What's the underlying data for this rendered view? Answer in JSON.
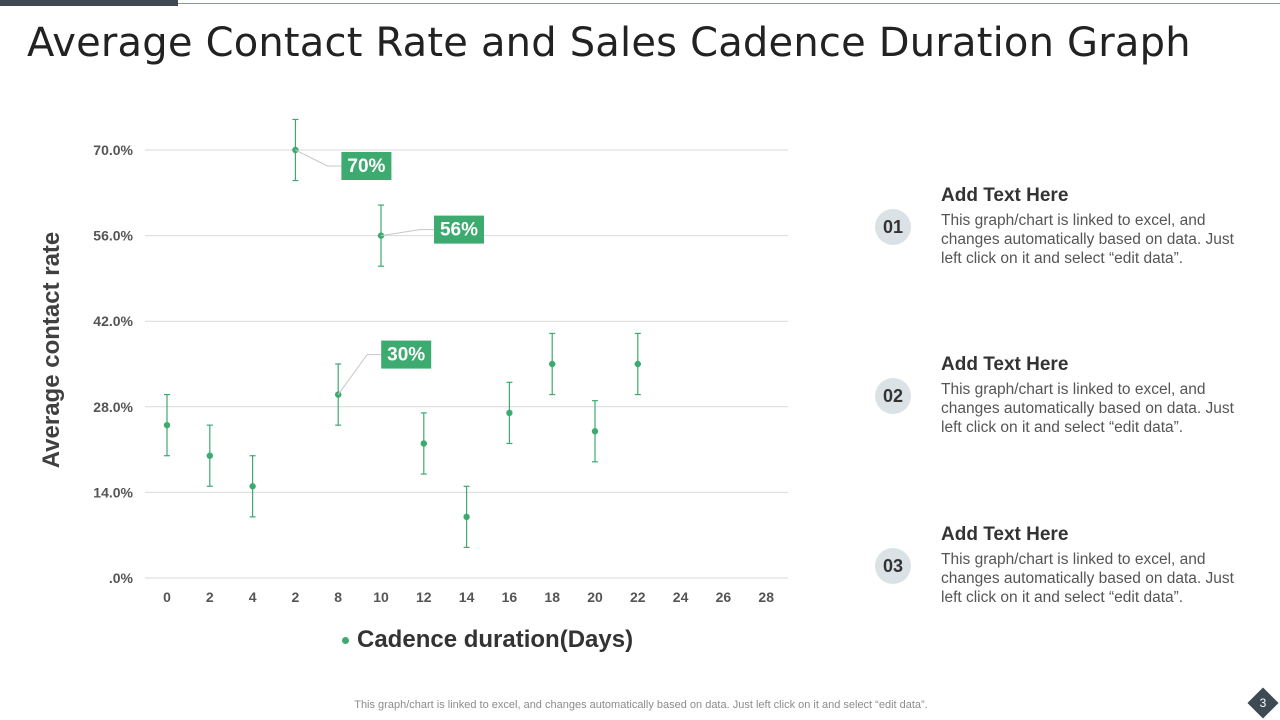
{
  "title": "Average Contact Rate and Sales Cadence Duration Graph",
  "chart_data": {
    "type": "scatter",
    "title": "",
    "xlabel": "Cadence duration(Days)",
    "ylabel": "Average contact rate",
    "legend": "Cadence duration(Days)",
    "ylim": [
      0,
      70
    ],
    "yticks": [
      0,
      14,
      28,
      42,
      56,
      70
    ],
    "ytick_labels": [
      ".0%",
      "14.0%",
      "28.0%",
      "42.0%",
      "56.0%",
      "70.0%"
    ],
    "categories": [
      "0",
      "2",
      "4",
      "2",
      "8",
      "10",
      "12",
      "14",
      "16",
      "18",
      "20",
      "22",
      "24",
      "26",
      "28"
    ],
    "points": [
      {
        "x_index": 0,
        "y": 25,
        "err": 5
      },
      {
        "x_index": 1,
        "y": 20,
        "err": 5
      },
      {
        "x_index": 2,
        "y": 15,
        "err": 5
      },
      {
        "x_index": 3,
        "y": 70,
        "err": 5
      },
      {
        "x_index": 4,
        "y": 30,
        "err": 5
      },
      {
        "x_index": 5,
        "y": 56,
        "err": 5
      },
      {
        "x_index": 6,
        "y": 22,
        "err": 5
      },
      {
        "x_index": 7,
        "y": 10,
        "err": 5
      },
      {
        "x_index": 8,
        "y": 27,
        "err": 5
      },
      {
        "x_index": 9,
        "y": 35,
        "err": 5
      },
      {
        "x_index": 10,
        "y": 24,
        "err": 5
      },
      {
        "x_index": 11,
        "y": 35,
        "err": 5
      }
    ],
    "callouts": [
      {
        "point_index": 3,
        "label": "70%"
      },
      {
        "point_index": 5,
        "label": "56%"
      },
      {
        "point_index": 4,
        "label": "30%"
      }
    ],
    "grid": true,
    "colors": {
      "series": "#3daa6f",
      "callout_bg": "#3daa6f",
      "grid": "#d9d9d9"
    }
  },
  "notes": [
    {
      "number": "01",
      "heading": "Add Text Here",
      "body": "This graph/chart is linked to excel, and changes automatically based on data. Just left click on it and select “edit data”."
    },
    {
      "number": "02",
      "heading": "Add Text Here",
      "body": "This graph/chart is linked to excel, and changes automatically based on data. Just left click on it and select “edit data”."
    },
    {
      "number": "03",
      "heading": "Add Text Here",
      "body": "This graph/chart is linked to excel, and changes automatically based on data. Just left click on it and select “edit data”."
    }
  ],
  "footer": "This graph/chart is linked to excel,  and changes automatically based on data. Just left click on it and select “edit data”.",
  "page_number": "3"
}
